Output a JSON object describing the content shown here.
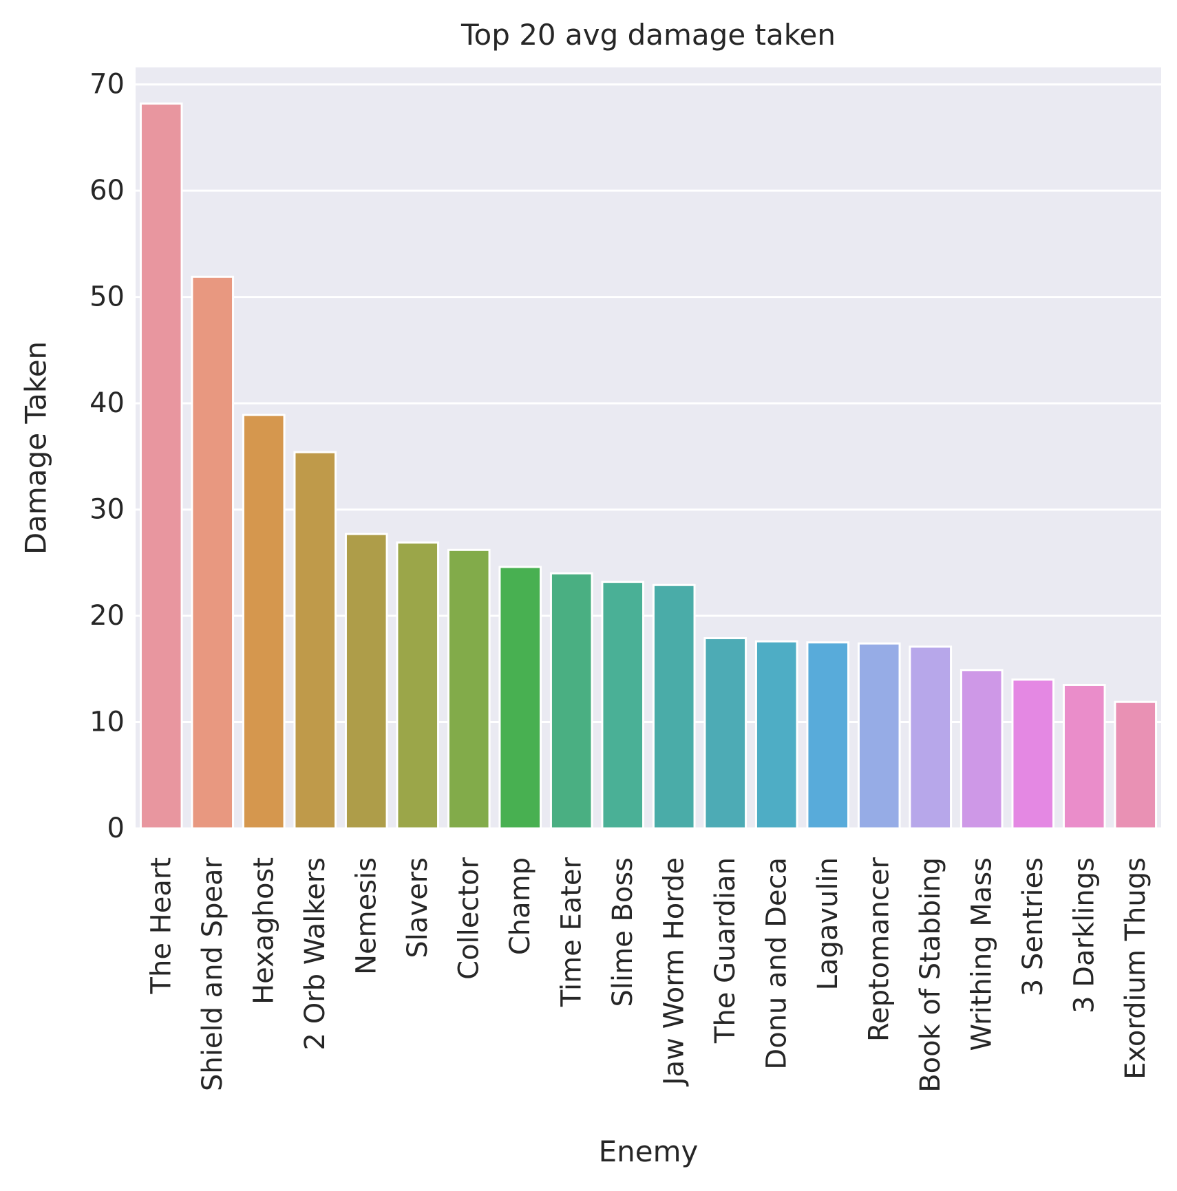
{
  "chart_data": {
    "type": "bar",
    "title": "Top 20 avg damage taken",
    "xlabel": "Enemy",
    "ylabel": "Damage Taken",
    "ylim": [
      0,
      71.6
    ],
    "yticks": [
      "0",
      "10",
      "20",
      "30",
      "40",
      "50",
      "60",
      "70"
    ],
    "grid": true,
    "background_color": "#EAEAF2",
    "categories": [
      "The Heart",
      "Shield and Spear",
      "Hexaghost",
      "2 Orb Walkers",
      "Nemesis",
      "Slavers",
      "Collector",
      "Champ",
      "Time Eater",
      "Slime Boss",
      "Jaw Worm Horde",
      "The Guardian",
      "Donu and Deca",
      "Lagavulin",
      "Reptomancer",
      "Book of Stabbing",
      "Writhing Mass",
      "3 Sentries",
      "3 Darklings",
      "Exordium Thugs"
    ],
    "values": [
      68.2,
      51.9,
      38.9,
      35.4,
      27.7,
      26.9,
      26.2,
      24.6,
      24.0,
      23.2,
      22.9,
      17.9,
      17.6,
      17.5,
      17.4,
      17.1,
      14.9,
      14.0,
      13.5,
      11.9
    ],
    "colors": [
      "#E8969F",
      "#E89880",
      "#D5974E",
      "#BF9A4A",
      "#AE9D49",
      "#9BA649",
      "#82AB4A",
      "#48B051",
      "#4AAF82",
      "#4AB096",
      "#4AACA8",
      "#4DABB5",
      "#4EADC5",
      "#58ABDA",
      "#96ACE6",
      "#B7A7EA",
      "#CE98E7",
      "#E488E3",
      "#EA8DCA",
      "#E991B4"
    ]
  }
}
